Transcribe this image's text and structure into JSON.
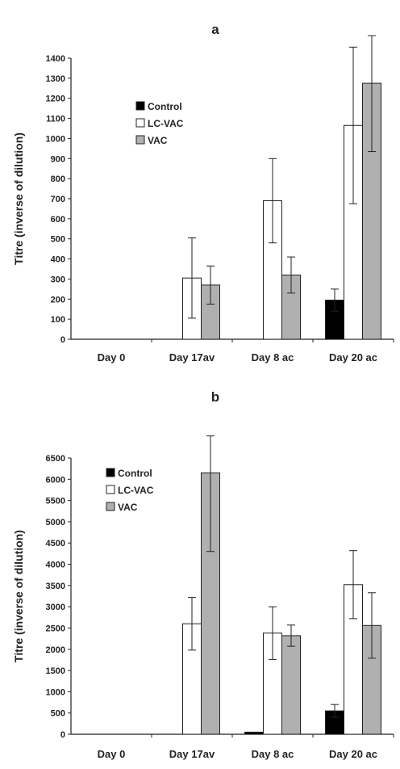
{
  "chart_data": [
    {
      "panel": "a",
      "type": "bar",
      "title": "a",
      "xlabel": "",
      "ylabel": "Titre (inverse of dilution)",
      "categories": [
        "Day 0",
        "Day 17av",
        "Day 8 ac",
        "Day 20 ac"
      ],
      "ylim": [
        0,
        1400
      ],
      "yticks": [
        0,
        100,
        200,
        300,
        400,
        500,
        600,
        700,
        800,
        900,
        1000,
        1100,
        1200,
        1300,
        1400
      ],
      "legend_position": "upper-left",
      "series": [
        {
          "name": "Control",
          "color": "#000000",
          "values": [
            0,
            0,
            0,
            195
          ],
          "errors": [
            0,
            0,
            0,
            55
          ]
        },
        {
          "name": "LC-VAC",
          "color": "#ffffff",
          "values": [
            0,
            305,
            690,
            1065
          ],
          "errors": [
            0,
            200,
            210,
            390
          ]
        },
        {
          "name": "VAC",
          "color": "#b0b0b0",
          "values": [
            0,
            270,
            320,
            1275
          ],
          "errors": [
            0,
            95,
            90,
            340
          ]
        }
      ]
    },
    {
      "panel": "b",
      "type": "bar",
      "title": "b",
      "xlabel": "",
      "ylabel": "Titre (inverse of dilution)",
      "categories": [
        "Day 0",
        "Day 17av",
        "Day 8 ac",
        "Day 20 ac"
      ],
      "ylim": [
        0,
        6500
      ],
      "yticks": [
        0,
        500,
        1000,
        1500,
        2000,
        2500,
        3000,
        3500,
        4000,
        4500,
        5000,
        5500,
        6000,
        6500
      ],
      "legend_position": "upper-left",
      "series": [
        {
          "name": "Control",
          "color": "#000000",
          "values": [
            0,
            0,
            50,
            550
          ],
          "errors": [
            0,
            0,
            0,
            150
          ]
        },
        {
          "name": "LC-VAC",
          "color": "#ffffff",
          "values": [
            0,
            2600,
            2380,
            3520
          ],
          "errors": [
            0,
            620,
            620,
            800
          ]
        },
        {
          "name": "VAC",
          "color": "#b0b0b0",
          "values": [
            0,
            6150,
            2320,
            2560
          ],
          "errors": [
            0,
            1850,
            250,
            770
          ]
        }
      ]
    }
  ]
}
